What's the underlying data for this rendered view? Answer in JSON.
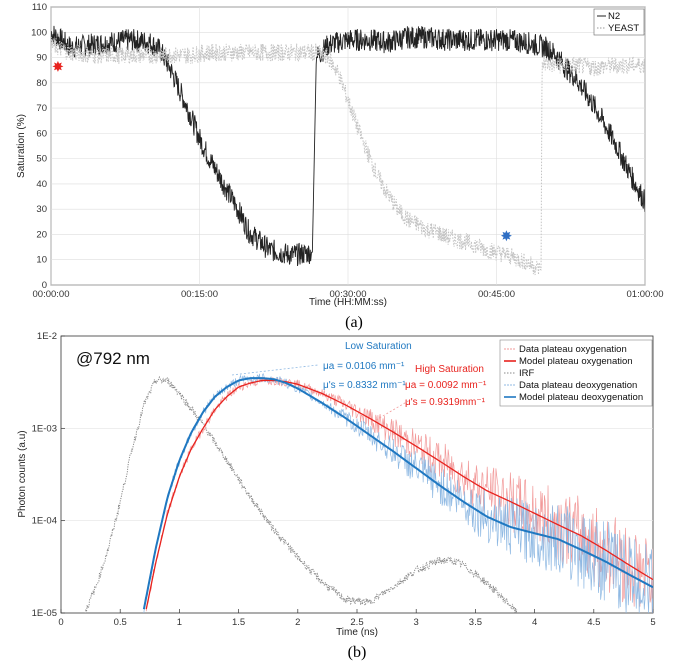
{
  "captions": [
    "(a)",
    "(b)"
  ],
  "chart_data": [
    {
      "type": "line",
      "xlabel": "Time (HH:MM:ss)",
      "ylabel": "Saturation (%)",
      "xlim": [
        0,
        60
      ],
      "ylim": [
        0,
        110
      ],
      "x_ticks": [
        0,
        15,
        30,
        45,
        60
      ],
      "x_tick_labels": [
        "00:00:00",
        "00:15:00",
        "00:30:00",
        "00:45:00",
        "01:00:00"
      ],
      "y_ticks": [
        0,
        10,
        20,
        30,
        40,
        50,
        60,
        70,
        80,
        90,
        100,
        110
      ],
      "legend_position": "top-right",
      "series": [
        {
          "name": "N2",
          "color": "#222222",
          "style": "solid",
          "x": [
            0,
            2,
            4,
            6,
            8,
            10,
            11,
            12,
            13,
            14,
            15,
            16,
            17,
            18,
            19,
            20,
            22,
            24,
            25,
            26.4,
            26.8,
            28,
            30,
            32,
            34,
            36,
            38,
            40,
            42,
            44,
            46,
            48,
            49,
            50,
            51,
            52,
            53,
            54,
            55,
            56,
            57,
            58,
            59,
            60
          ],
          "values": [
            100,
            94,
            95,
            96,
            97,
            96,
            93,
            86,
            77,
            68,
            58,
            50,
            43,
            36,
            29,
            21,
            14,
            12,
            12,
            13,
            90,
            95,
            97,
            97,
            96,
            98,
            98,
            97,
            97,
            97,
            97,
            96,
            95,
            94,
            91,
            86,
            82,
            76,
            70,
            63,
            56,
            48,
            40,
            33
          ]
        },
        {
          "name": "YEAST",
          "color": "#c4c4c4",
          "style": "dotted",
          "x": [
            0,
            2,
            4,
            6,
            8,
            10,
            12,
            14,
            16,
            18,
            20,
            22,
            24,
            26,
            27,
            28,
            29,
            30,
            31,
            32,
            33,
            34,
            35,
            36,
            37,
            38,
            39,
            40,
            42,
            44,
            46,
            48,
            49.5,
            49.6,
            51,
            53,
            55,
            57,
            60
          ],
          "values": [
            95,
            92,
            91,
            91,
            91,
            91,
            91,
            91,
            92,
            92,
            92,
            92,
            92,
            92,
            92,
            90,
            84,
            73,
            62,
            52,
            43,
            36,
            30,
            26,
            24,
            22,
            21,
            19,
            17,
            14,
            12,
            9,
            6,
            88,
            87,
            87,
            86,
            87,
            87
          ]
        }
      ],
      "markers": [
        {
          "x": 0.7,
          "y": 86.5,
          "color": "#e8231e",
          "shape": "star"
        },
        {
          "x": 46,
          "y": 19.5,
          "color": "#2f6fc4",
          "shape": "star"
        }
      ]
    },
    {
      "type": "line",
      "xlabel": "Time (ns)",
      "ylabel": "Photon counts (a.u)",
      "xlim": [
        0,
        5
      ],
      "ylim": [
        1e-05,
        0.01
      ],
      "log_y": true,
      "x_ticks": [
        0,
        0.5,
        1,
        1.5,
        2,
        2.5,
        3,
        3.5,
        4,
        4.5,
        5
      ],
      "x_tick_labels": [
        "0",
        "0.5",
        "1",
        "1.5",
        "2",
        "2.5",
        "3",
        "3.5",
        "4",
        "4.5",
        "5"
      ],
      "y_ticks": [
        1e-05,
        0.0001,
        0.001,
        0.01
      ],
      "y_tick_labels": [
        "1E-05",
        "1E-04",
        "1E-03",
        "1E-2"
      ],
      "legend_position": "top-right",
      "wavelength_label": "@792 nm",
      "series": [
        {
          "name": "Data plateau oxygenation",
          "color": "#f29a9a",
          "style": "noisy",
          "x": [
            0.72,
            0.8,
            0.9,
            1.0,
            1.1,
            1.2,
            1.3,
            1.4,
            1.5,
            1.6,
            1.7,
            1.8,
            1.9,
            2.0,
            2.2,
            2.4,
            2.6,
            2.8,
            3.0,
            3.2,
            3.4,
            3.6,
            3.8,
            4.0,
            4.2,
            4.4,
            4.6,
            4.8,
            5.0
          ],
          "values": [
            1.1e-05,
            3.5e-05,
            0.00012,
            0.0003,
            0.0006,
            0.001,
            0.0016,
            0.0022,
            0.0028,
            0.0031,
            0.0033,
            0.0033,
            0.0032,
            0.003,
            0.0024,
            0.0018,
            0.0013,
            0.00092,
            0.00064,
            0.00044,
            0.0003,
            0.00021,
            0.00016,
            0.00012,
            9e-05,
            6.8e-05,
            4.8e-05,
            3.3e-05,
            2.3e-05
          ]
        },
        {
          "name": "Model plateau oxygenation",
          "color": "#e8231e",
          "style": "solid",
          "x": [
            0.72,
            0.8,
            0.9,
            1.0,
            1.1,
            1.2,
            1.3,
            1.4,
            1.5,
            1.6,
            1.7,
            1.8,
            1.9,
            2.0,
            2.2,
            2.4,
            2.6,
            2.8,
            3.0,
            3.2,
            3.4,
            3.6,
            3.8,
            4.0,
            4.2,
            4.4,
            4.6,
            4.8,
            5.0
          ],
          "values": [
            1.1e-05,
            3.5e-05,
            0.00012,
            0.0003,
            0.0006,
            0.001,
            0.0016,
            0.0022,
            0.0028,
            0.0031,
            0.0033,
            0.0033,
            0.0032,
            0.003,
            0.0024,
            0.0018,
            0.0013,
            0.00092,
            0.00064,
            0.00044,
            0.0003,
            0.00021,
            0.00016,
            0.00012,
            9e-05,
            6.8e-05,
            4.8e-05,
            3.3e-05,
            2.3e-05
          ]
        },
        {
          "name": "IRF",
          "color": "#8a8a8a",
          "style": "dotted",
          "x": [
            0.2,
            0.3,
            0.4,
            0.5,
            0.6,
            0.7,
            0.8,
            0.9,
            1.0,
            1.2,
            1.4,
            1.6,
            1.8,
            2.0,
            2.2,
            2.4,
            2.6,
            2.8,
            3.0,
            3.2,
            3.3,
            3.4,
            3.6,
            3.8,
            3.85
          ],
          "values": [
            1e-05,
            2e-05,
            5e-05,
            0.00016,
            0.0006,
            0.0018,
            0.0033,
            0.0033,
            0.0024,
            0.0011,
            0.00045,
            0.00018,
            8e-05,
            4e-05,
            2.2e-05,
            1.4e-05,
            1.3e-05,
            1.9e-05,
            2.9e-05,
            3.7e-05,
            3.7e-05,
            3.3e-05,
            2.1e-05,
            1.2e-05,
            1e-05
          ]
        },
        {
          "name": "Data plateau deoxygenation",
          "color": "#8fb9e3",
          "style": "noisy",
          "x": [
            0.7,
            0.8,
            0.9,
            1.0,
            1.1,
            1.2,
            1.3,
            1.4,
            1.5,
            1.6,
            1.7,
            1.8,
            1.9,
            2.0,
            2.2,
            2.4,
            2.6,
            2.8,
            3.0,
            3.2,
            3.4,
            3.6,
            3.8,
            4.0,
            4.2,
            4.4,
            4.6,
            4.8,
            5.0
          ],
          "values": [
            1.1e-05,
            5e-05,
            0.00018,
            0.00045,
            0.0009,
            0.0015,
            0.0022,
            0.0028,
            0.0033,
            0.0035,
            0.0035,
            0.0034,
            0.0031,
            0.0027,
            0.0019,
            0.0013,
            0.00086,
            0.00057,
            0.00037,
            0.00024,
            0.00016,
            0.00011,
            8.5e-05,
            7.3e-05,
            6.3e-05,
            4.8e-05,
            3.6e-05,
            2.6e-05,
            1.9e-05
          ]
        },
        {
          "name": "Model plateau deoxygenation",
          "color": "#1f78c1",
          "style": "solid",
          "x": [
            0.7,
            0.8,
            0.9,
            1.0,
            1.1,
            1.2,
            1.3,
            1.4,
            1.5,
            1.6,
            1.7,
            1.8,
            1.9,
            2.0,
            2.2,
            2.4,
            2.6,
            2.8,
            3.0,
            3.2,
            3.4,
            3.6,
            3.8,
            4.0,
            4.2,
            4.4,
            4.6,
            4.8,
            5.0
          ],
          "values": [
            1.1e-05,
            5e-05,
            0.00018,
            0.00045,
            0.0009,
            0.0015,
            0.0022,
            0.0028,
            0.0033,
            0.0035,
            0.0035,
            0.0034,
            0.0031,
            0.0027,
            0.0019,
            0.0013,
            0.00086,
            0.00057,
            0.00037,
            0.00024,
            0.00016,
            0.00011,
            8.5e-05,
            7.3e-05,
            6.3e-05,
            4.8e-05,
            3.6e-05,
            2.6e-05,
            1.9e-05
          ]
        }
      ],
      "annotations": [
        {
          "title": "Low Saturation",
          "color": "#1f78c1",
          "lines": [
            "μa = 0.0106 mm⁻¹",
            "μ's = 0.8332 mm⁻¹"
          ],
          "pointer": {
            "x": 1.7,
            "y": 0.0037
          }
        },
        {
          "title": "High Saturation",
          "color": "#e8231e",
          "lines": [
            "μa = 0.0092 mm⁻¹",
            "μ's = 0.9319mm⁻¹"
          ],
          "pointer": {
            "x": 2.8,
            "y": 0.0012
          }
        }
      ]
    }
  ]
}
